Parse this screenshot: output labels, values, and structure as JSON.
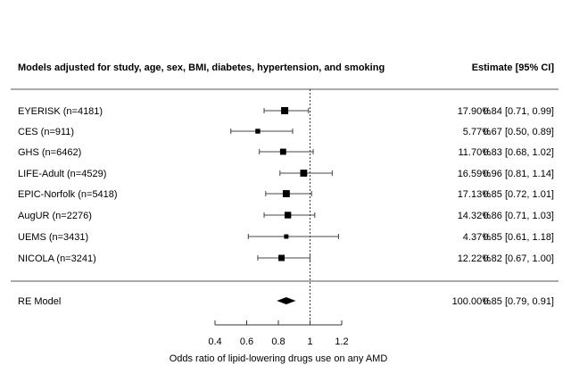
{
  "chart_data": {
    "type": "forest",
    "header_left": "Models adjusted for study, age, sex, BMI, diabetes, hypertension, and smoking",
    "header_right": "Estimate [95% CI]",
    "studies": [
      {
        "label": "EYERISK (n=4181)",
        "weight": "17.90%",
        "weight_value": 17.9,
        "estimate": 0.84,
        "lower": 0.71,
        "upper": 0.99,
        "ci_text": "0.84 [0.71, 0.99]"
      },
      {
        "label": "CES (n=911)",
        "weight": "5.77%",
        "weight_value": 5.77,
        "estimate": 0.67,
        "lower": 0.5,
        "upper": 0.89,
        "ci_text": "0.67 [0.50, 0.89]"
      },
      {
        "label": "GHS (n=6462)",
        "weight": "11.70%",
        "weight_value": 11.7,
        "estimate": 0.83,
        "lower": 0.68,
        "upper": 1.02,
        "ci_text": "0.83 [0.68, 1.02]"
      },
      {
        "label": "LIFE-Adult (n=4529)",
        "weight": "16.59%",
        "weight_value": 16.59,
        "estimate": 0.96,
        "lower": 0.81,
        "upper": 1.14,
        "ci_text": "0.96 [0.81, 1.14]"
      },
      {
        "label": "EPIC-Norfolk (n=5418)",
        "weight": "17.13%",
        "weight_value": 17.13,
        "estimate": 0.85,
        "lower": 0.72,
        "upper": 1.01,
        "ci_text": "0.85 [0.72, 1.01]"
      },
      {
        "label": "AugUR (n=2276)",
        "weight": "14.32%",
        "weight_value": 14.32,
        "estimate": 0.86,
        "lower": 0.71,
        "upper": 1.03,
        "ci_text": "0.86 [0.71, 1.03]"
      },
      {
        "label": "UEMS (n=3431)",
        "weight": "4.37%",
        "weight_value": 4.37,
        "estimate": 0.85,
        "lower": 0.61,
        "upper": 1.18,
        "ci_text": "0.85 [0.61, 1.18]"
      },
      {
        "label": "NICOLA (n=3241)",
        "weight": "12.22%",
        "weight_value": 12.22,
        "estimate": 0.82,
        "lower": 0.67,
        "upper": 1.0,
        "ci_text": "0.82 [0.67, 1.00]"
      }
    ],
    "summary": {
      "label": "RE Model",
      "weight": "100.00%",
      "estimate": 0.85,
      "lower": 0.79,
      "upper": 0.91,
      "ci_text": "0.85 [0.79, 0.91]"
    },
    "xlabel": "Odds ratio of lipid-lowering drugs use on any AMD",
    "xticks": [
      0.4,
      0.6,
      0.8,
      1,
      1.2
    ],
    "xtick_labels": [
      "0.4",
      "0.6",
      "0.8",
      "1",
      "1.2"
    ],
    "xlim": [
      0.4,
      1.2
    ],
    "reference_line": 1
  }
}
